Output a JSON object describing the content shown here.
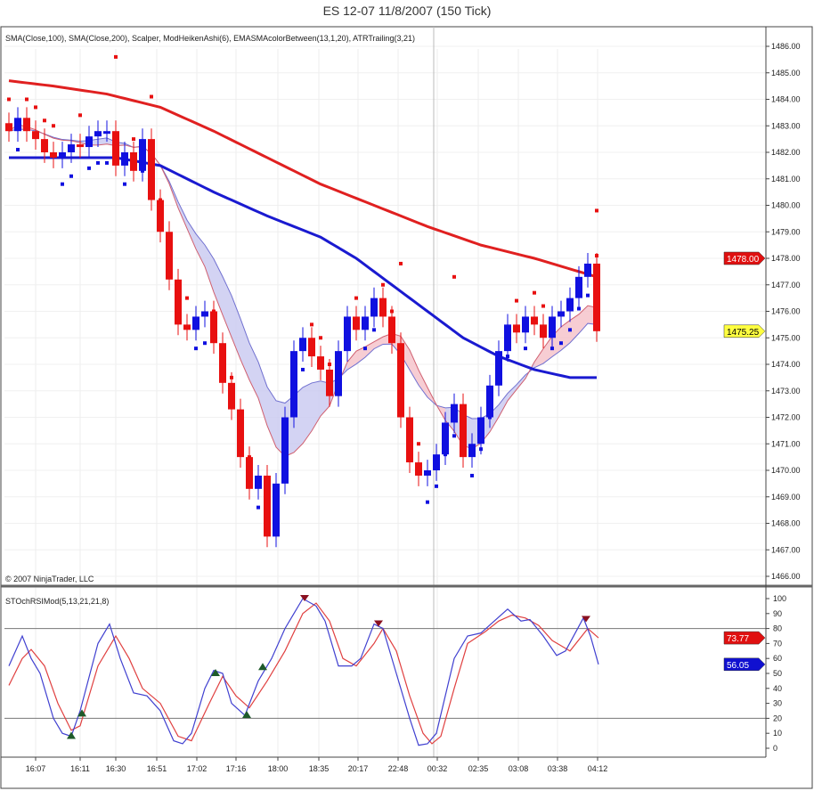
{
  "title": "ES 12-07  11/8/2007  (150 Tick)",
  "copyright": "© 2007 NinjaTrader, LLC",
  "colors": {
    "up": "#1010e0",
    "down": "#e81010",
    "sma100": "#1a1ad0",
    "sma200": "#e02020",
    "stoch_k": "#4040d0",
    "stoch_d": "#e04040",
    "band_fill_down": "#f5c0c8",
    "band_fill_up": "#c8c8f0",
    "tag_last": "#ffff40",
    "tag_red": "#e01010",
    "tag_blue": "#1010d0"
  },
  "chart_data": [
    {
      "type": "candlestick",
      "indicator_label": "SMA(Close,100), SMA(Close,200), Scalper, ModHeikenAshi(6), EMASMAcolorBetween(13,1,20), ATRTrailing(3,21)",
      "ylim": [
        1465.6,
        1486.6
      ],
      "y_ticks": [
        "1466.00",
        "1467.00",
        "1468.00",
        "1469.00",
        "1470.00",
        "1471.00",
        "1472.00",
        "1473.00",
        "1474.00",
        "1475.00",
        "1476.00",
        "1477.00",
        "1478.00",
        "1479.00",
        "1480.00",
        "1481.00",
        "1482.00",
        "1483.00",
        "1484.00",
        "1485.00",
        "1486.00"
      ],
      "closes": [
        1482.8,
        1483.3,
        1482.8,
        1482.5,
        1482,
        1481.8,
        1482,
        1482.3,
        1482.2,
        1482.6,
        1482.8,
        1482.8,
        1481.5,
        1482,
        1481.3,
        1482.5,
        1480.2,
        1479,
        1477.2,
        1475.5,
        1475.3,
        1475.8,
        1476,
        1474.8,
        1473.3,
        1472.3,
        1470.5,
        1469.3,
        1469.8,
        1467.5,
        1469.5,
        1472,
        1474.5,
        1475,
        1474.3,
        1473.8,
        1472.8,
        1474.5,
        1475.8,
        1475.3,
        1475.8,
        1476.5,
        1475.8,
        1474.8,
        1472,
        1470.3,
        1469.8,
        1470,
        1470.6,
        1471.8,
        1472.5,
        1470.5,
        1471,
        1472,
        1473.2,
        1474.5,
        1475.5,
        1475.2,
        1475.8,
        1475.5,
        1475,
        1475.8,
        1476,
        1476.5,
        1477.3,
        1477.8,
        1475.25
      ],
      "sma100": [
        [
          0,
          1481.8
        ],
        [
          12,
          1481.8
        ],
        [
          17,
          1481.5
        ],
        [
          23,
          1480.5
        ],
        [
          29,
          1479.6
        ],
        [
          35,
          1478.8
        ],
        [
          39,
          1478
        ],
        [
          43,
          1477
        ],
        [
          47,
          1476
        ],
        [
          51,
          1475
        ],
        [
          55,
          1474.3
        ],
        [
          59,
          1473.8
        ],
        [
          63,
          1473.5
        ],
        [
          66,
          1473.5
        ]
      ],
      "sma200": [
        [
          0,
          1484.7
        ],
        [
          5,
          1484.5
        ],
        [
          11,
          1484.2
        ],
        [
          17,
          1483.7
        ],
        [
          23,
          1482.8
        ],
        [
          29,
          1481.8
        ],
        [
          35,
          1480.8
        ],
        [
          41,
          1480
        ],
        [
          47,
          1479.2
        ],
        [
          53,
          1478.5
        ],
        [
          59,
          1478
        ],
        [
          63,
          1477.6
        ],
        [
          66,
          1477.3
        ]
      ],
      "scalper_dots_high": [
        [
          12,
          1485.6
        ],
        [
          16,
          1484.1
        ],
        [
          44,
          1477.8
        ],
        [
          50,
          1477.3
        ],
        [
          66,
          1479.8
        ],
        [
          66,
          1478.1
        ]
      ],
      "price_tags": {
        "high_marker": "1478.00",
        "last": "1475.25"
      }
    },
    {
      "type": "line",
      "indicator_label": "STOchRSIMod(5,13,21,21,8)",
      "ylim": [
        -5,
        105
      ],
      "y_ticks": [
        "0",
        "10",
        "20",
        "30",
        "40",
        "50",
        "60",
        "70",
        "80",
        "90",
        "100"
      ],
      "levels": [
        20,
        80
      ],
      "series": [
        {
          "values": [
            [
              0,
              55
            ],
            [
              1.5,
              75
            ],
            [
              2.5,
              60
            ],
            [
              3.5,
              50
            ],
            [
              5,
              20
            ],
            [
              6,
              10
            ],
            [
              7,
              8
            ],
            [
              8,
              25
            ],
            [
              10,
              70
            ],
            [
              11.3,
              83
            ],
            [
              12.5,
              60
            ],
            [
              14,
              37
            ],
            [
              15.5,
              35
            ],
            [
              17,
              25
            ],
            [
              18.5,
              5
            ],
            [
              19.5,
              3
            ],
            [
              20.5,
              10
            ],
            [
              22,
              40
            ],
            [
              23,
              52
            ],
            [
              24,
              50
            ],
            [
              25,
              30
            ],
            [
              26.5,
              22
            ],
            [
              28,
              45
            ],
            [
              29.5,
              60
            ],
            [
              31,
              80
            ],
            [
              32,
              90
            ],
            [
              33,
              100
            ],
            [
              34.5,
              95
            ],
            [
              35.5,
              85
            ],
            [
              37,
              55
            ],
            [
              38.5,
              55
            ],
            [
              39.5,
              60
            ],
            [
              41,
              83
            ],
            [
              42,
              80
            ],
            [
              43.5,
              50
            ],
            [
              45,
              20
            ],
            [
              46,
              2
            ],
            [
              47,
              3
            ],
            [
              48,
              10
            ],
            [
              50,
              60
            ],
            [
              51.5,
              75
            ],
            [
              53,
              77
            ],
            [
              54.5,
              85
            ],
            [
              56,
              93
            ],
            [
              57.5,
              85
            ],
            [
              58.5,
              86
            ],
            [
              60,
              75
            ],
            [
              61.5,
              62
            ],
            [
              62.5,
              65
            ],
            [
              64.5,
              87
            ],
            [
              65.3,
              75
            ],
            [
              66.2,
              56.05
            ]
          ]
        },
        {
          "values": [
            [
              0,
              42
            ],
            [
              1.5,
              60
            ],
            [
              2.5,
              66
            ],
            [
              4,
              55
            ],
            [
              5.5,
              30
            ],
            [
              7,
              12
            ],
            [
              8,
              15
            ],
            [
              10,
              55
            ],
            [
              12,
              75
            ],
            [
              13.5,
              60
            ],
            [
              15,
              40
            ],
            [
              17,
              30
            ],
            [
              19,
              8
            ],
            [
              20.5,
              5
            ],
            [
              22.5,
              30
            ],
            [
              24,
              48
            ],
            [
              25.5,
              35
            ],
            [
              27,
              27
            ],
            [
              29,
              45
            ],
            [
              31,
              65
            ],
            [
              33,
              90
            ],
            [
              34.5,
              97
            ],
            [
              36,
              85
            ],
            [
              37.5,
              60
            ],
            [
              39,
              55
            ],
            [
              41,
              70
            ],
            [
              42,
              80
            ],
            [
              43.5,
              65
            ],
            [
              45,
              35
            ],
            [
              46.5,
              10
            ],
            [
              47.5,
              3
            ],
            [
              48.5,
              8
            ],
            [
              50,
              40
            ],
            [
              51.5,
              70
            ],
            [
              53.5,
              78
            ],
            [
              55,
              85
            ],
            [
              56.5,
              89
            ],
            [
              58,
              87
            ],
            [
              59.5,
              82
            ],
            [
              61,
              72
            ],
            [
              63,
              65
            ],
            [
              65,
              80
            ],
            [
              66.2,
              73.77
            ]
          ]
        }
      ],
      "markers_up": [
        [
          7,
          8
        ],
        [
          8.2,
          23
        ],
        [
          23.2,
          50
        ],
        [
          26.7,
          22
        ],
        [
          28.5,
          54
        ]
      ],
      "markers_down": [
        [
          33.2,
          100
        ],
        [
          41.5,
          83
        ],
        [
          64.8,
          86
        ]
      ],
      "value_tags": {
        "d": "73.77",
        "k": "56.05"
      }
    }
  ],
  "x_ticks": [
    {
      "bar": 3,
      "label": "16:07"
    },
    {
      "bar": 8,
      "label": "16:11"
    },
    {
      "bar": 12,
      "label": "16:30"
    },
    {
      "bar": 16.6,
      "label": "16:51"
    },
    {
      "bar": 21.1,
      "label": "17:02"
    },
    {
      "bar": 25.5,
      "label": "17:16"
    },
    {
      "bar": 30.2,
      "label": "18:00"
    },
    {
      "bar": 34.8,
      "label": "18:35"
    },
    {
      "bar": 39.2,
      "label": "20:17"
    },
    {
      "bar": 43.7,
      "label": "22:48"
    },
    {
      "bar": 48.1,
      "label": "00:32"
    },
    {
      "bar": 52.7,
      "label": "02:35"
    },
    {
      "bar": 57.2,
      "label": "03:08"
    },
    {
      "bar": 61.6,
      "label": "03:38"
    },
    {
      "bar": 66.1,
      "label": "04:12"
    }
  ]
}
